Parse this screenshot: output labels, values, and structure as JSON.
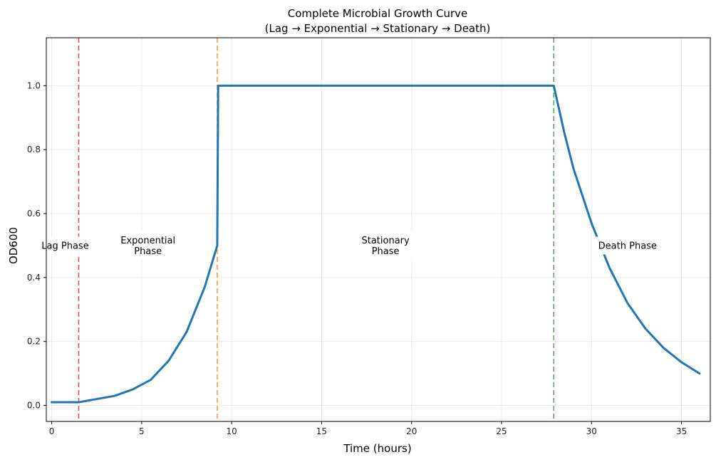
{
  "chart_data": {
    "type": "line",
    "title": "Complete Microbial Growth Curve",
    "subtitle": "(Lag → Exponential → Stationary → Death)",
    "xlabel": "Time (hours)",
    "ylabel": "OD600",
    "xlim": [
      -0.3,
      36.6
    ],
    "ylim": [
      -0.05,
      1.15
    ],
    "x_ticks": [
      0,
      5,
      10,
      15,
      20,
      25,
      30,
      35
    ],
    "y_ticks": [
      0.0,
      0.2,
      0.4,
      0.6,
      0.8,
      1.0
    ],
    "x_tick_labels": [
      "0",
      "5",
      "10",
      "15",
      "20",
      "25",
      "30",
      "35"
    ],
    "y_tick_labels": [
      "0.0",
      "0.2",
      "0.4",
      "0.6",
      "0.8",
      "1.0"
    ],
    "grid": true,
    "series": [
      {
        "color": "#1f77b4",
        "x": [
          0,
          1.5,
          2.5,
          3.5,
          4.5,
          5.5,
          6.5,
          7.5,
          8.5,
          9.2,
          9.25,
          12,
          15,
          20,
          25,
          27.9,
          28.5,
          29,
          30,
          31,
          32,
          33,
          34,
          35,
          36
        ],
        "y": [
          0.01,
          0.01,
          0.02,
          0.03,
          0.05,
          0.08,
          0.14,
          0.23,
          0.37,
          0.5,
          1.0,
          1.0,
          1.0,
          1.0,
          1.0,
          1.0,
          0.85,
          0.74,
          0.57,
          0.43,
          0.32,
          0.24,
          0.18,
          0.135,
          0.1
        ]
      }
    ],
    "phase_boundaries": [
      {
        "x": 1.5,
        "color": "#d62728"
      },
      {
        "x": 9.2,
        "color": "#ff7f0e"
      },
      {
        "x": 27.9,
        "color": "#2ca02c"
      }
    ],
    "annotations": [
      {
        "text": [
          "Lag Phase"
        ],
        "x": 0.75,
        "y": 0.5
      },
      {
        "text": [
          "Exponential",
          "Phase"
        ],
        "x": 5.35,
        "y": 0.5
      },
      {
        "text": [
          "Stationary",
          "Phase"
        ],
        "x": 18.55,
        "y": 0.5
      },
      {
        "text": [
          "Death Phase"
        ],
        "x": 32.0,
        "y": 0.5
      }
    ]
  }
}
